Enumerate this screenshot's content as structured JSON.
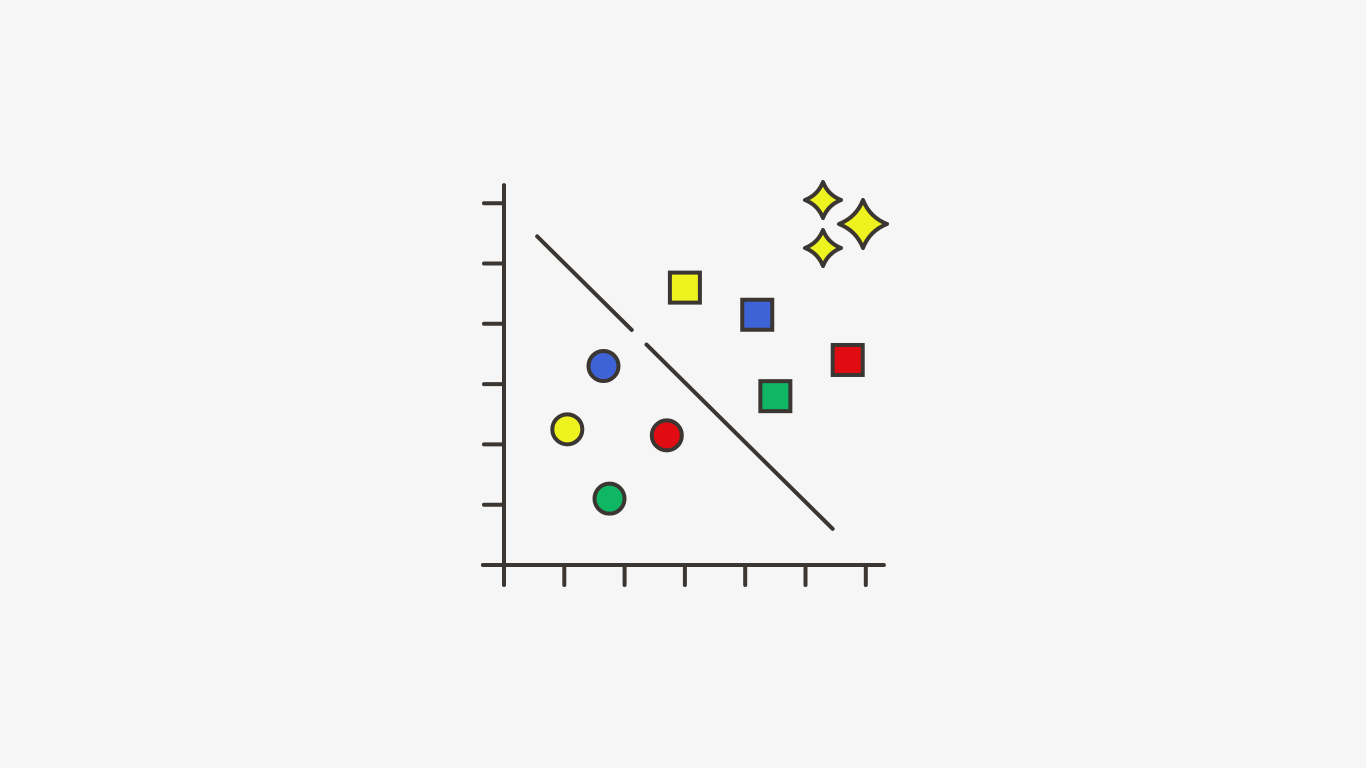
{
  "chart_data": {
    "type": "scatter",
    "title": "",
    "xlabel": "",
    "ylabel": "",
    "xlim": [
      0,
      6.3
    ],
    "ylim": [
      0,
      6.3
    ],
    "grid": false,
    "legend": "none",
    "x_ticks": [
      1,
      2,
      3,
      4,
      5,
      6
    ],
    "y_ticks": [
      1,
      2,
      3,
      4,
      5,
      6
    ],
    "decision_boundary": {
      "from": [
        0.55,
        5.45
      ],
      "to": [
        5.45,
        0.6
      ]
    },
    "series": [
      {
        "marker": "circle",
        "points": [
          {
            "x": 1.65,
            "y": 3.3,
            "color": "#3d63d6"
          },
          {
            "x": 1.05,
            "y": 2.25,
            "color": "#eef21e"
          },
          {
            "x": 2.7,
            "y": 2.15,
            "color": "#e00c12"
          },
          {
            "x": 1.75,
            "y": 1.1,
            "color": "#0fb765"
          }
        ]
      },
      {
        "marker": "square",
        "points": [
          {
            "x": 3.0,
            "y": 4.6,
            "color": "#eef21e"
          },
          {
            "x": 4.2,
            "y": 4.15,
            "color": "#3d63d6"
          },
          {
            "x": 5.7,
            "y": 3.4,
            "color": "#e00c12"
          },
          {
            "x": 4.5,
            "y": 2.8,
            "color": "#0fb765"
          }
        ]
      }
    ]
  },
  "decoration": {
    "icon": "sparkles-icon",
    "color": "#eef21e"
  },
  "colors": {
    "background": "#f6f6f6",
    "ink": "#3b3631"
  }
}
